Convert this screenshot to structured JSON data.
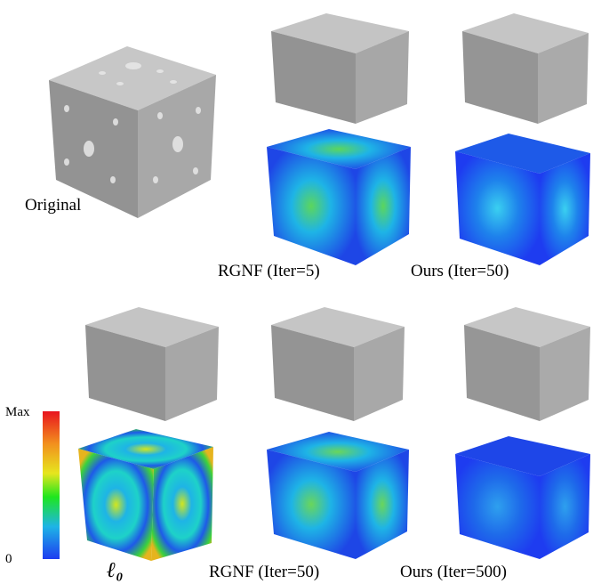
{
  "labels": {
    "original": "Original",
    "rgnf_iter5": "RGNF (Iter=5)",
    "ours_iter50": "Ours (Iter=50)",
    "l0": "ℓ₀",
    "rgnf_iter50": "RGNF (Iter=50)",
    "ours_iter500": "Ours (Iter=500)"
  },
  "colorbar": {
    "max_label": "Max",
    "min_label": "0"
  },
  "colors": {
    "gray_top": "#bdbdbd",
    "gray_left": "#8f8f8f",
    "gray_right": "#a3a3a3",
    "heat_low": "#1e3cf0",
    "heat_mid": "#1ee61e",
    "heat_high": "#e8141e"
  }
}
